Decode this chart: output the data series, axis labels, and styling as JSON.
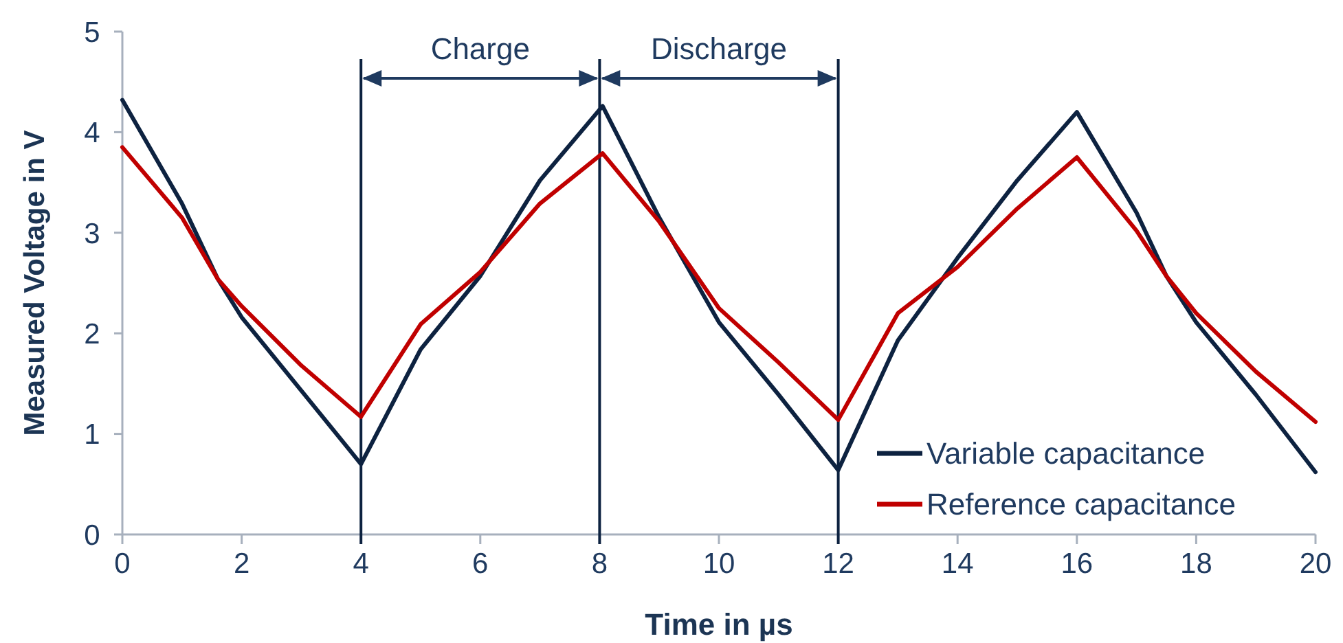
{
  "chart_data": {
    "type": "line",
    "xlabel": "Time in µs",
    "ylabel": "Measured Voltage in V",
    "xlim": [
      0,
      20
    ],
    "ylim": [
      0,
      5
    ],
    "xticks": [
      0,
      2,
      4,
      6,
      8,
      10,
      12,
      14,
      16,
      18,
      20
    ],
    "yticks": [
      0,
      1,
      2,
      3,
      4,
      5
    ],
    "grid": false,
    "legend": "bottom right",
    "marker": "none",
    "line_style": "solid",
    "series": [
      {
        "name": "Variable capacitance",
        "color": "#0d2240",
        "x": [
          0,
          1,
          1.6,
          2,
          3,
          4,
          5,
          6,
          7,
          8.05,
          9,
          10,
          11,
          12,
          13,
          14,
          15,
          16,
          17,
          17.5,
          18,
          19,
          20
        ],
        "values": [
          4.32,
          3.29,
          2.54,
          2.16,
          1.43,
          0.7,
          1.84,
          2.57,
          3.52,
          4.26,
          3.15,
          2.11,
          1.39,
          0.64,
          1.93,
          2.75,
          3.52,
          4.2,
          3.2,
          2.57,
          2.11,
          1.39,
          0.62
        ]
      },
      {
        "name": "Reference capacitance",
        "color": "#c00000",
        "x": [
          0,
          1,
          1.6,
          2,
          3,
          4,
          5,
          6,
          7,
          8.05,
          9,
          10,
          11,
          12,
          13,
          14,
          15,
          16,
          17,
          17.5,
          18,
          19,
          20
        ],
        "values": [
          3.85,
          3.15,
          2.54,
          2.27,
          1.68,
          1.17,
          2.09,
          2.61,
          3.29,
          3.79,
          3.11,
          2.25,
          1.71,
          1.14,
          2.2,
          2.66,
          3.24,
          3.75,
          3.02,
          2.57,
          2.2,
          1.62,
          1.12
        ]
      }
    ],
    "ref_lines": [
      {
        "axis": "x",
        "value": 4,
        "color": "#0d2240"
      },
      {
        "axis": "x",
        "value": 8,
        "color": "#0d2240"
      },
      {
        "axis": "x",
        "value": 12,
        "color": "#0d2240"
      }
    ],
    "annotations": [
      "Charge",
      "Discharge"
    ]
  }
}
